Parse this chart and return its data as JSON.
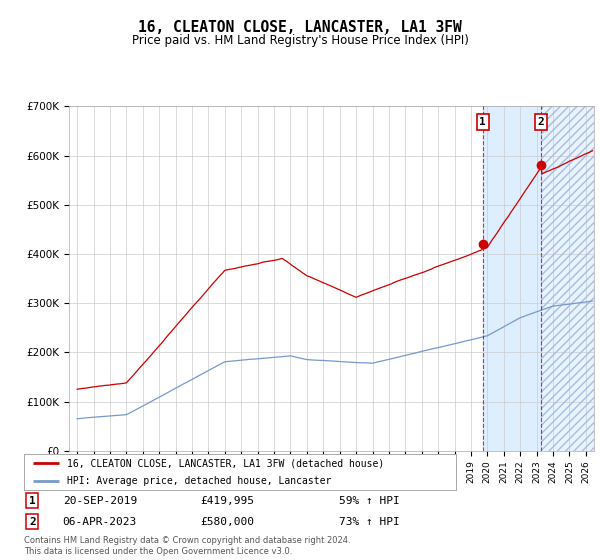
{
  "title": "16, CLEATON CLOSE, LANCASTER, LA1 3FW",
  "subtitle": "Price paid vs. HM Land Registry's House Price Index (HPI)",
  "footer": "Contains HM Land Registry data © Crown copyright and database right 2024.\nThis data is licensed under the Open Government Licence v3.0.",
  "legend_line1": "16, CLEATON CLOSE, LANCASTER, LA1 3FW (detached house)",
  "legend_line2": "HPI: Average price, detached house, Lancaster",
  "annotation1_date": "20-SEP-2019",
  "annotation1_price": "£419,995",
  "annotation1_hpi": "59% ↑ HPI",
  "annotation2_date": "06-APR-2023",
  "annotation2_price": "£580,000",
  "annotation2_hpi": "73% ↑ HPI",
  "sale1_year": 2019.72,
  "sale1_price": 419995,
  "sale2_year": 2023.27,
  "sale2_price": 580000,
  "ylim": [
    0,
    700000
  ],
  "yticks": [
    0,
    100000,
    200000,
    300000,
    400000,
    500000,
    600000,
    700000
  ],
  "ytick_labels": [
    "£0",
    "£100K",
    "£200K",
    "£300K",
    "£400K",
    "£500K",
    "£600K",
    "£700K"
  ],
  "xlim_start": 1994.5,
  "xlim_end": 2026.5,
  "red_color": "#cc0000",
  "blue_color": "#7799cc",
  "shade_color": "#ddeeff",
  "grid_color": "#cccccc"
}
